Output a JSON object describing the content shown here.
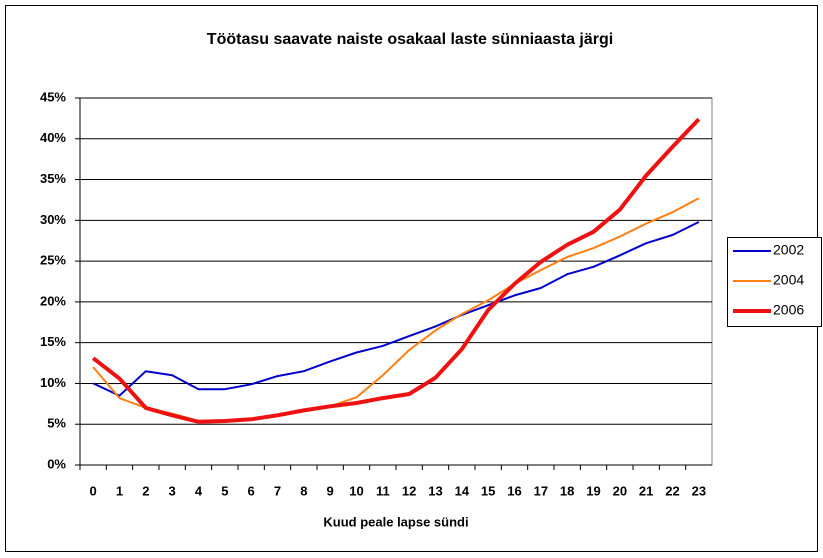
{
  "chart_data": {
    "type": "line",
    "title": "Töötasu saavate naiste osakaal laste sünniaasta järgi",
    "x_label": "Kuud peale lapse sündi",
    "categories": [
      "0",
      "1",
      "2",
      "3",
      "4",
      "5",
      "6",
      "7",
      "8",
      "9",
      "10",
      "11",
      "12",
      "13",
      "14",
      "15",
      "16",
      "17",
      "18",
      "19",
      "20",
      "21",
      "22",
      "23"
    ],
    "series": [
      {
        "name": "2002",
        "color": "#0000cc",
        "line_width": 2,
        "values": [
          10,
          8.5,
          11.5,
          11,
          9.3,
          9.3,
          9.9,
          10.9,
          11.5,
          12.7,
          13.8,
          14.6,
          15.8,
          17,
          18.4,
          19.6,
          20.8,
          21.7,
          23.4,
          24.3,
          25.7,
          27.2,
          28.2,
          29.8
        ]
      },
      {
        "name": "2004",
        "color": "#ff7f11",
        "line_width": 2,
        "values": [
          12,
          8.2,
          7,
          6.3,
          5.4,
          5.4,
          5.6,
          6.2,
          6.7,
          7.2,
          8.3,
          11,
          14.1,
          16.5,
          18.5,
          20.2,
          22.2,
          23.9,
          25.5,
          26.6,
          28,
          29.6,
          31,
          32.7
        ]
      },
      {
        "name": "2006",
        "color": "#ee1111",
        "line_width": 4,
        "values": [
          13.1,
          10.6,
          7,
          6.1,
          5.3,
          5.4,
          5.6,
          6.1,
          6.7,
          7.2,
          7.6,
          8.2,
          8.7,
          10.7,
          14.2,
          19,
          22.2,
          24.9,
          27,
          28.6,
          31.3,
          35.5,
          39,
          42.4
        ]
      }
    ],
    "ylim": [
      0,
      45
    ],
    "yticks": [
      {
        "value": 0,
        "label": "0%"
      },
      {
        "value": 5,
        "label": "5%"
      },
      {
        "value": 10,
        "label": "10%"
      },
      {
        "value": 15,
        "label": "15%"
      },
      {
        "value": 20,
        "label": "20%"
      },
      {
        "value": 25,
        "label": "25%"
      },
      {
        "value": 30,
        "label": "30%"
      },
      {
        "value": 35,
        "label": "35%"
      },
      {
        "value": 40,
        "label": "40%"
      },
      {
        "value": 45,
        "label": "45%"
      }
    ],
    "grid": true,
    "legend": "right"
  }
}
